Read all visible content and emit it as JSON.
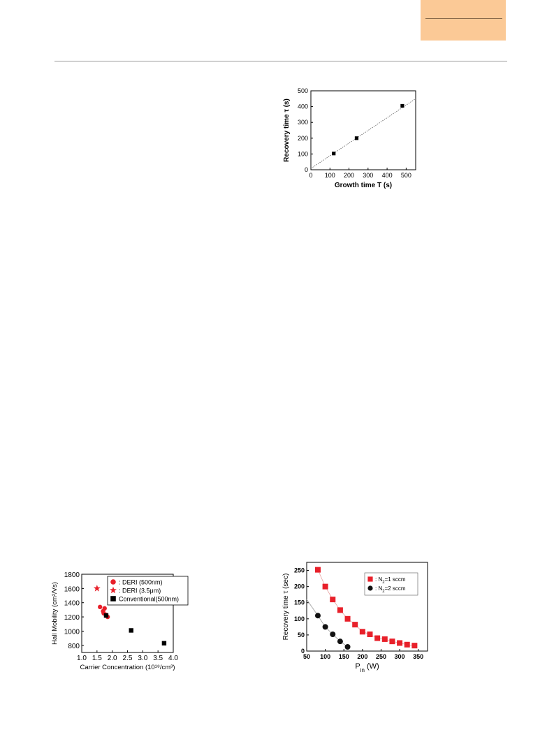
{
  "page": {
    "tab_color": "#fbc996"
  },
  "figures": [
    {
      "id": "fig1",
      "chart_data": {
        "type": "scatter",
        "title": "",
        "xlabel": "Growth time T (s)",
        "ylabel": "Recovery time τ (s)",
        "xlim": [
          0,
          550
        ],
        "ylim": [
          0,
          500
        ],
        "xticks": [
          "0",
          "100",
          "200",
          "300",
          "400",
          "500"
        ],
        "yticks": [
          "0",
          "100",
          "200",
          "300",
          "400",
          "500"
        ],
        "series": [
          {
            "marker": "square",
            "color": "#000000",
            "x": [
              120,
              240,
              480
            ],
            "y": [
              103,
              200,
              405
            ]
          }
        ],
        "fit_line": {
          "style": "dotted",
          "color": "#555555",
          "x": [
            0,
            550
          ],
          "y": [
            8,
            450
          ]
        },
        "grid": false
      }
    },
    {
      "id": "fig2",
      "chart_data": {
        "type": "scatter",
        "title": "",
        "xlabel": "Carrier Concentration (10¹⁸/cm³)",
        "ylabel": "Hall Mobility (cm²/Vs)",
        "xlim": [
          1.0,
          4.0
        ],
        "ylim": [
          700,
          1800
        ],
        "xticks": [
          "1.0",
          "1.5",
          "2.0",
          "2.5",
          "3.0",
          "3.5",
          "4.0"
        ],
        "yticks": [
          "800",
          "1000",
          "1200",
          "1400",
          "1600",
          "1800"
        ],
        "legend_position": "top-right",
        "series": [
          {
            "name": ": DERI (500nm)",
            "marker": "circle",
            "color": "#e8202a",
            "x": [
              1.6,
              1.7,
              1.75,
              1.72,
              1.8,
              1.85
            ],
            "y": [
              1340,
              1280,
              1320,
              1250,
              1230,
              1200
            ]
          },
          {
            "name": ": DERI (3.5μm)",
            "marker": "star",
            "color": "#e8202a",
            "x": [
              1.5
            ],
            "y": [
              1600
            ]
          },
          {
            "name": "Conventional(500nm)",
            "marker": "square",
            "color": "#000000",
            "x": [
              1.8,
              2.62,
              3.7
            ],
            "y": [
              1220,
              1010,
              830
            ]
          }
        ],
        "grid": false
      }
    },
    {
      "id": "fig3",
      "chart_data": {
        "type": "scatter",
        "title": "",
        "xlabel": "P",
        "xlabel_sub": "in",
        "xlabel_unit": " (W)",
        "ylabel": "Recovery time τ (sec)",
        "xlim": [
          50,
          375
        ],
        "ylim": [
          0,
          275
        ],
        "xticks": [
          "50",
          "100",
          "150",
          "200",
          "250",
          "300",
          "350"
        ],
        "yticks": [
          "0",
          "50",
          "100",
          "150",
          "200",
          "250"
        ],
        "legend_position": "top-right",
        "series": [
          {
            "name_main": ": N",
            "name_sub": "2",
            "name_tail": "=1 sccm",
            "marker": "square",
            "color": "#e8202a",
            "x": [
              80,
              100,
              120,
              140,
              160,
              180,
              200,
              220,
              240,
              260,
              280,
              300,
              320,
              340
            ],
            "y": [
              252,
              200,
              160,
              127,
              100,
              82,
              60,
              52,
              40,
              37,
              30,
              25,
              20,
              17
            ]
          },
          {
            "name_main": ": N",
            "name_sub": "2",
            "name_tail": "=2 sccm",
            "marker": "circle",
            "color": "#111111",
            "x": [
              80,
              100,
              120,
              140,
              160
            ],
            "y": [
              110,
              75,
              52,
              30,
              13
            ]
          }
        ],
        "grid": false
      }
    }
  ]
}
